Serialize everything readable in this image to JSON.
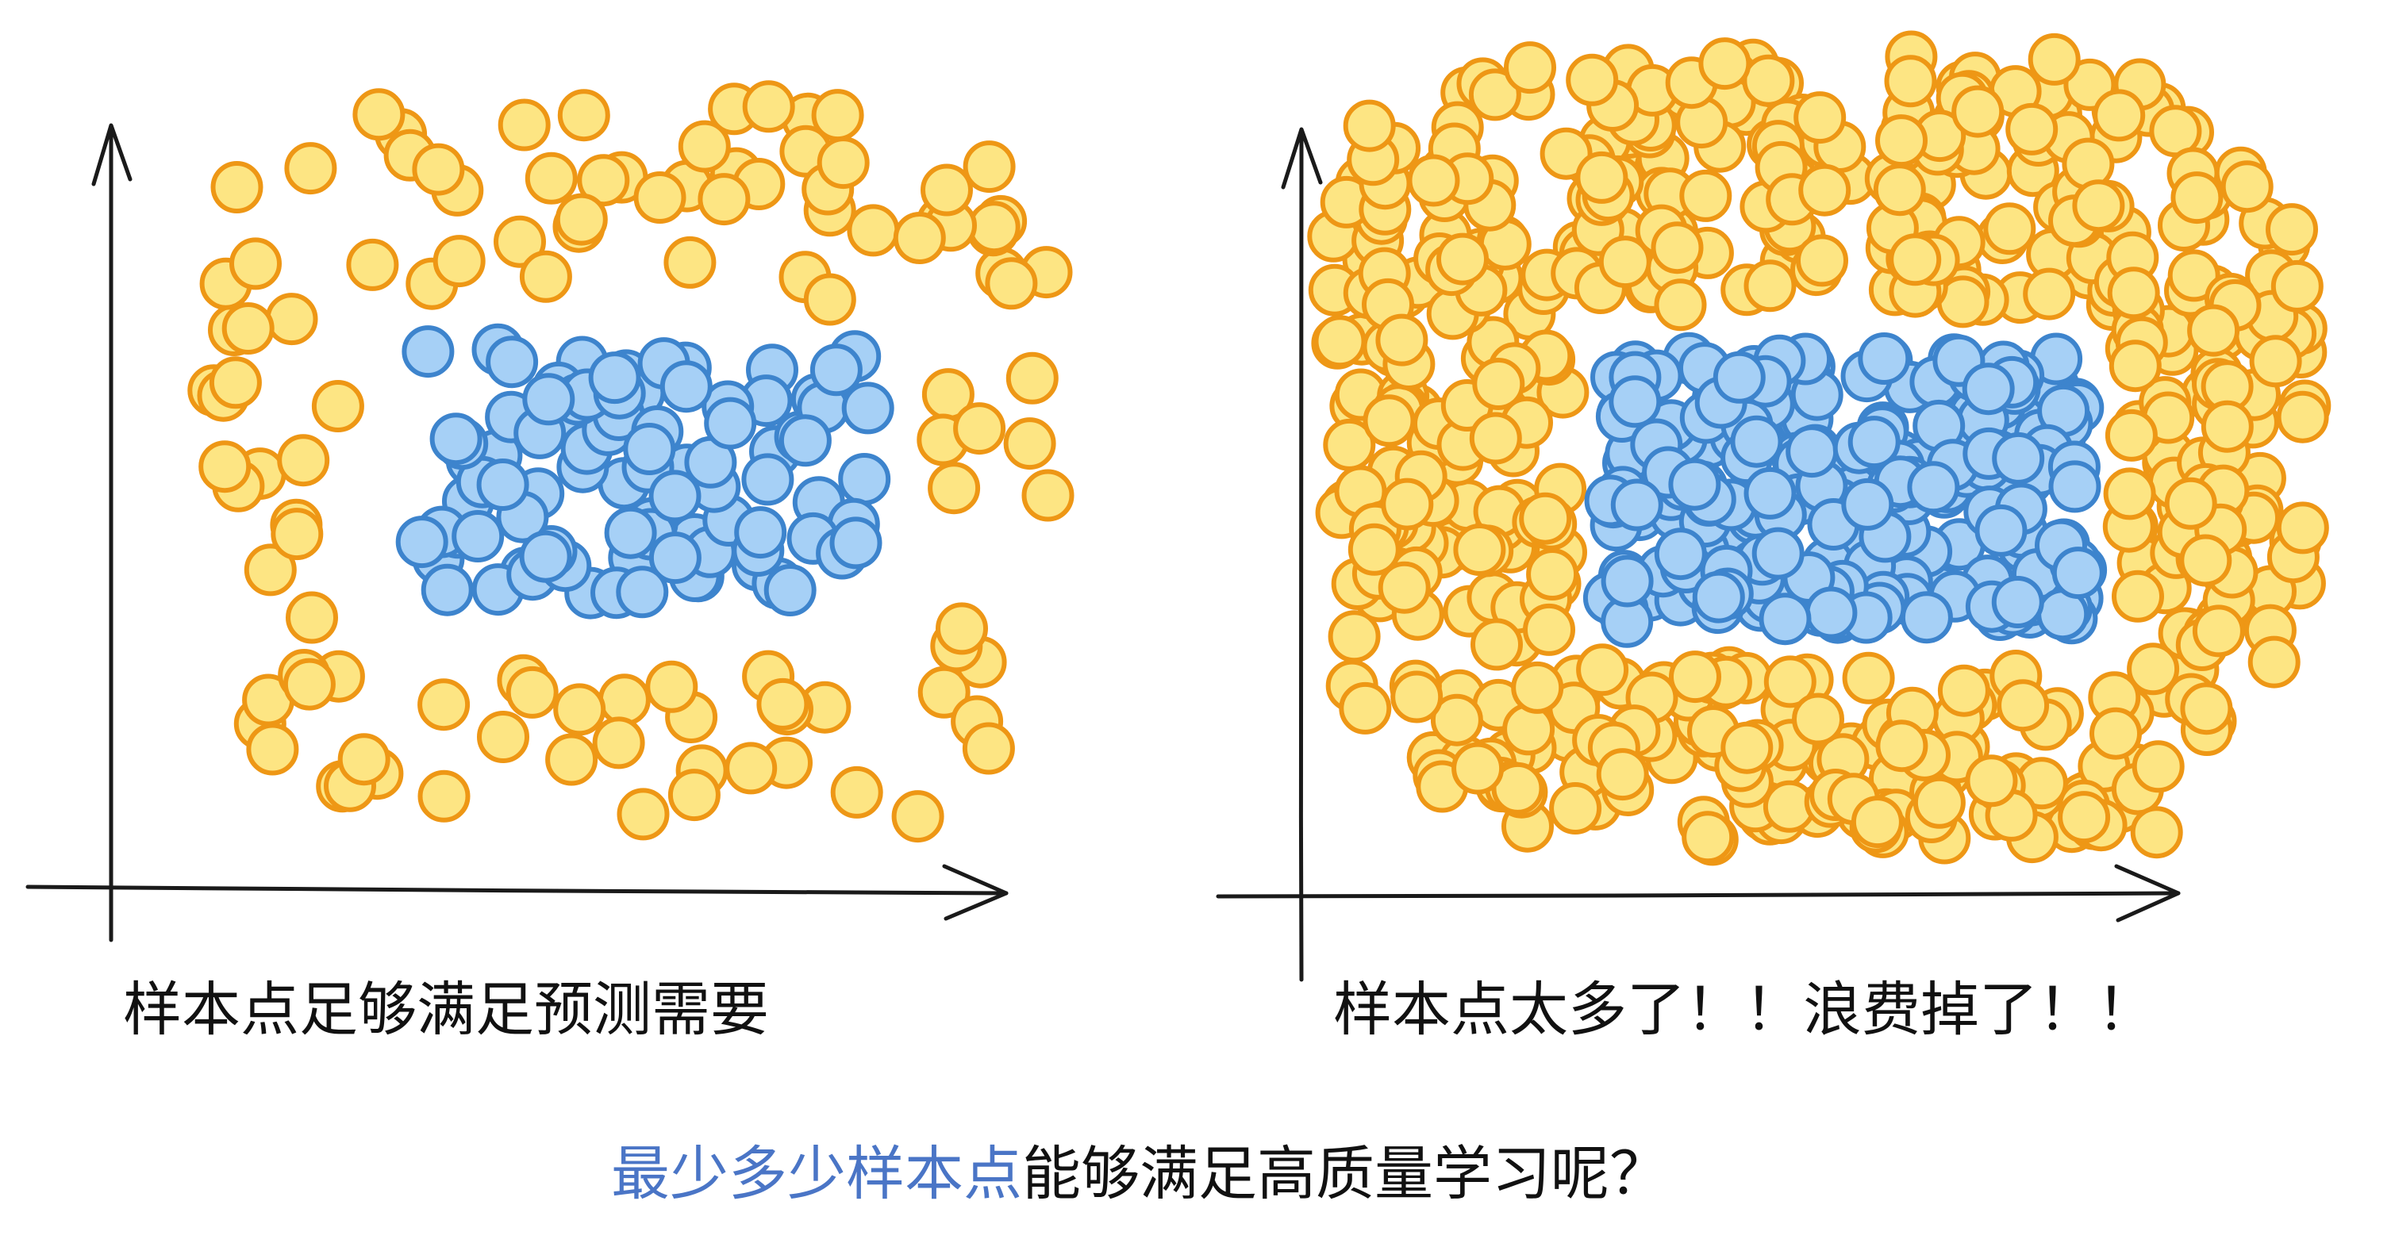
{
  "captions": {
    "left": "样本点足够满足预测需要",
    "right": "样本点太多了！！浪费掉了！！"
  },
  "question": {
    "highlight": "最少多少样本点",
    "rest": "能够满足高质量学习呢？"
  },
  "colors": {
    "outer_fill": "#fde583",
    "outer_stroke": "#ee9715",
    "inner_fill": "#a6d0f6",
    "inner_stroke": "#3d84cd",
    "highlight_text": "#4a75c6"
  },
  "chart_data": [
    {
      "type": "scatter",
      "series": [
        {
          "class": "inner",
          "color": "#a6d0f6",
          "count": 90
        },
        {
          "class": "outer",
          "color": "#fde583",
          "count": 110
        }
      ],
      "inner_region": {
        "x": [
          0.23,
          0.8
        ],
        "y": [
          0.33,
          0.71
        ]
      },
      "grid": false
    },
    {
      "type": "scatter",
      "series": [
        {
          "class": "inner",
          "color": "#a6d0f6",
          "count": 230
        },
        {
          "class": "outer",
          "color": "#fde583",
          "count": 520
        }
      ],
      "inner_region": {
        "x": [
          0.27,
          0.78
        ],
        "y": [
          0.36,
          0.74
        ]
      },
      "grid": false
    }
  ]
}
